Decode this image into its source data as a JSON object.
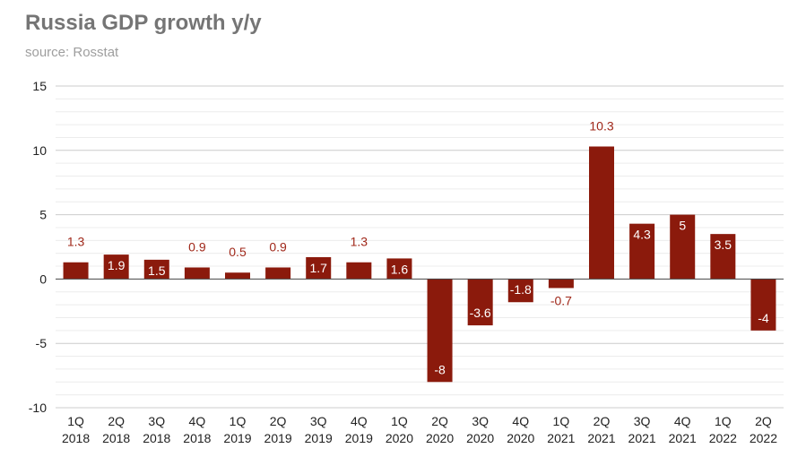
{
  "chart_data": {
    "type": "bar",
    "title": "Russia GDP growth y/y",
    "subtitle": "source: Rosstat",
    "xlabel": "",
    "ylabel": "",
    "ylim": [
      -10,
      15
    ],
    "yticks": [
      15,
      10,
      5,
      0,
      -5,
      -10
    ],
    "grid": true,
    "bar_color": "#8b1a0c",
    "label_color_outside": "#a0281a",
    "label_color_inside": "#ffffff",
    "categories": [
      {
        "q": "1Q",
        "y": "2018"
      },
      {
        "q": "2Q",
        "y": "2018"
      },
      {
        "q": "3Q",
        "y": "2018"
      },
      {
        "q": "4Q",
        "y": "2018"
      },
      {
        "q": "1Q",
        "y": "2019"
      },
      {
        "q": "2Q",
        "y": "2019"
      },
      {
        "q": "3Q",
        "y": "2019"
      },
      {
        "q": "4Q",
        "y": "2019"
      },
      {
        "q": "1Q",
        "y": "2020"
      },
      {
        "q": "2Q",
        "y": "2020"
      },
      {
        "q": "3Q",
        "y": "2020"
      },
      {
        "q": "4Q",
        "y": "2020"
      },
      {
        "q": "1Q",
        "y": "2021"
      },
      {
        "q": "2Q",
        "y": "2021"
      },
      {
        "q": "3Q",
        "y": "2021"
      },
      {
        "q": "4Q",
        "y": "2021"
      },
      {
        "q": "1Q",
        "y": "2022"
      },
      {
        "q": "2Q",
        "y": "2022"
      }
    ],
    "values": [
      1.3,
      1.9,
      1.5,
      0.9,
      0.5,
      0.9,
      1.7,
      1.3,
      1.6,
      -8,
      -3.6,
      -1.8,
      -0.7,
      10.3,
      4.3,
      5,
      3.5,
      -4
    ],
    "labels": [
      "1.3",
      "1.9",
      "1.5",
      "0.9",
      "0.5",
      "0.9",
      "1.7",
      "1.3",
      "1.6",
      "-8",
      "-3.6",
      "-1.8",
      "-0.7",
      "10.3",
      "4.3",
      "5",
      "3.5",
      "-4"
    ],
    "label_outside": [
      true,
      false,
      false,
      true,
      true,
      true,
      false,
      true,
      false,
      false,
      false,
      false,
      true,
      true,
      false,
      false,
      false,
      false
    ]
  }
}
